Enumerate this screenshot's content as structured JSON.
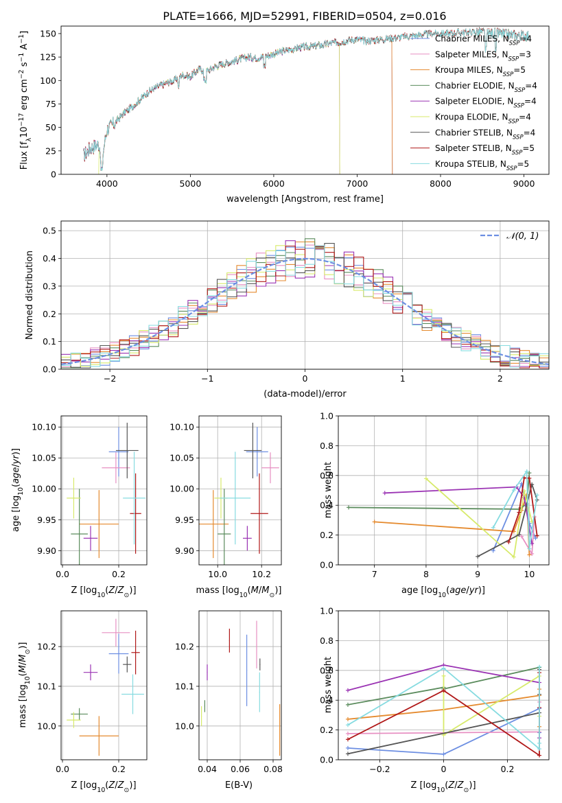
{
  "title": "PLATE=1666, MJD=52991, FIBERID=0504, z=0.016",
  "colors": {
    "Chabrier MILES": "#6c8ee2",
    "Salpeter MILES": "#e78fc2",
    "Kroupa MILES": "#e58a2e",
    "Chabrier ELODIE": "#5a8b5c",
    "Salpeter ELODIE": "#9a32b3",
    "Kroupa ELODIE": "#d7ea6a",
    "Chabrier STELIB": "#555555",
    "Salpeter STELIB": "#b01818",
    "Kroupa STELIB": "#86dbe0"
  },
  "chart_data": [
    {
      "id": "spectrum",
      "type": "line",
      "xlabel": "wavelength [Angstrom, rest frame]",
      "ylabel_pre": "Flux [f",
      "ylabel_sub": "λ",
      "ylabel_mid": "10",
      "ylabel_sup": "−17",
      "ylabel_post": " erg cm",
      "ylabel_sup2": "−2",
      "ylabel_post2": " s",
      "ylabel_sup3": "−1",
      "ylabel_post3": " A",
      "ylabel_sup4": "−1",
      "ylabel_end": "]",
      "xlim": [
        3450,
        9300
      ],
      "ylim": [
        0,
        158
      ],
      "xticks": [
        4000,
        5000,
        6000,
        7000,
        8000,
        9000
      ],
      "yticks": [
        0,
        25,
        50,
        75,
        100,
        125,
        150
      ],
      "legend_position": "upper right",
      "legend": [
        {
          "label": "Chabrier MILES, N",
          "sub": "SSP",
          "tail": "=4",
          "series": "Chabrier MILES"
        },
        {
          "label": "Salpeter MILES, N",
          "sub": "SSP",
          "tail": "=3",
          "series": "Salpeter MILES"
        },
        {
          "label": "Kroupa MILES, N",
          "sub": "SSP",
          "tail": "=5",
          "series": "Kroupa MILES"
        },
        {
          "label": "Chabrier ELODIE, N",
          "sub": "SSP",
          "tail": "=4",
          "series": "Chabrier ELODIE"
        },
        {
          "label": "Salpeter ELODIE, N",
          "sub": "SSP",
          "tail": "=4",
          "series": "Salpeter ELODIE"
        },
        {
          "label": "Kroupa ELODIE, N",
          "sub": "SSP",
          "tail": "=4",
          "series": "Kroupa ELODIE"
        },
        {
          "label": "Chabrier STELIB, N",
          "sub": "SSP",
          "tail": "=4",
          "series": "Chabrier STELIB"
        },
        {
          "label": "Salpeter STELIB, N",
          "sub": "SSP",
          "tail": "=5",
          "series": "Salpeter STELIB"
        },
        {
          "label": "Kroupa STELIB, N",
          "sub": "SSP",
          "tail": "=5",
          "series": "Kroupa STELIB"
        }
      ],
      "continuum": [
        [
          3720,
          20
        ],
        [
          3800,
          28
        ],
        [
          3900,
          32
        ],
        [
          3950,
          22
        ],
        [
          4000,
          48
        ],
        [
          4100,
          55
        ],
        [
          4200,
          65
        ],
        [
          4300,
          72
        ],
        [
          4400,
          80
        ],
        [
          4500,
          88
        ],
        [
          4600,
          93
        ],
        [
          4700,
          97
        ],
        [
          4800,
          100
        ],
        [
          4900,
          106
        ],
        [
          5000,
          104
        ],
        [
          5100,
          112
        ],
        [
          5200,
          110
        ],
        [
          5300,
          115
        ],
        [
          5400,
          118
        ],
        [
          5500,
          120
        ],
        [
          5600,
          123
        ],
        [
          5700,
          125
        ],
        [
          5800,
          124
        ],
        [
          5900,
          126
        ],
        [
          6000,
          128
        ],
        [
          6100,
          131
        ],
        [
          6200,
          133
        ],
        [
          6300,
          135
        ],
        [
          6400,
          136
        ],
        [
          6500,
          137
        ],
        [
          6600,
          138
        ],
        [
          6700,
          140
        ],
        [
          6800,
          141
        ],
        [
          6900,
          143
        ],
        [
          7000,
          144
        ],
        [
          7100,
          142
        ],
        [
          7200,
          143
        ],
        [
          7300,
          144
        ],
        [
          7400,
          145
        ],
        [
          7500,
          146
        ],
        [
          7600,
          147
        ],
        [
          7700,
          148
        ],
        [
          7800,
          149
        ],
        [
          7900,
          150
        ],
        [
          8000,
          150
        ],
        [
          8100,
          150
        ],
        [
          8200,
          151
        ],
        [
          8300,
          151
        ],
        [
          8400,
          152
        ],
        [
          8500,
          151
        ],
        [
          8600,
          150
        ],
        [
          8700,
          150
        ],
        [
          8800,
          149
        ],
        [
          8900,
          148
        ],
        [
          9000,
          148
        ],
        [
          9060,
          148
        ]
      ],
      "dropouts": [
        {
          "series": "Kroupa ELODIE",
          "start": 3720,
          "end": 3900
        },
        {
          "series": "Kroupa ELODIE",
          "start": 6790,
          "end": 9060
        },
        {
          "series": "Kroupa MILES",
          "start": 7420,
          "end": 9060
        },
        {
          "series": "Salpeter MILES",
          "start": 7420,
          "end": 9060
        },
        {
          "series": "Chabrier MILES",
          "start": 7420,
          "end": 9060
        },
        {
          "series": "Salpeter ELODIE",
          "start": 6790,
          "end": 9060
        }
      ]
    },
    {
      "id": "residuals",
      "type": "histogram",
      "xlabel": "(data-model)/error",
      "ylabel": "Normed distribution",
      "xlim": [
        -2.5,
        2.5
      ],
      "ylim": [
        0,
        0.535
      ],
      "xticks": [
        -2,
        -1,
        0,
        1,
        2
      ],
      "yticks": [
        0.0,
        0.1,
        0.2,
        0.3,
        0.4,
        0.5
      ],
      "grid": true,
      "bin_width": 0.1,
      "reference_curve": {
        "label": "𝒩(0, 1)",
        "color": "#6c8ee2",
        "style": "dashed",
        "mean": 0,
        "sigma": 1
      },
      "legend_position": "upper right"
    },
    {
      "id": "age_vs_Z",
      "type": "errorbar",
      "xlabel": "Z [log₁₀(Z/Z⊙)]",
      "ylabel": "age  [log₁₀(age/yr)]",
      "xlim": [
        -0.005,
        0.3
      ],
      "ylim": [
        9.877,
        10.118
      ],
      "xticks": [
        0.0,
        0.2
      ],
      "yticks": [
        9.9,
        9.95,
        10.0,
        10.05,
        10.1
      ],
      "grid": true,
      "points": [
        {
          "series": "Chabrier MILES",
          "x": 0.2,
          "y": 10.06,
          "xerr": 0.035,
          "yerr": 0.04
        },
        {
          "series": "Salpeter MILES",
          "x": 0.19,
          "y": 10.034,
          "xerr": 0.05,
          "yerr": 0.025
        },
        {
          "series": "Kroupa MILES",
          "x": 0.13,
          "y": 9.943,
          "xerr": 0.07,
          "yerr": 0.055
        },
        {
          "series": "Chabrier ELODIE",
          "x": 0.06,
          "y": 9.927,
          "xerr": 0.03,
          "yerr": 0.073
        },
        {
          "series": "Salpeter ELODIE",
          "x": 0.1,
          "y": 9.92,
          "xerr": 0.025,
          "yerr": 0.02
        },
        {
          "series": "Kroupa ELODIE",
          "x": 0.04,
          "y": 9.985,
          "xerr": 0.025,
          "yerr": 0.033
        },
        {
          "series": "Chabrier STELIB",
          "x": 0.23,
          "y": 10.062,
          "xerr": 0.04,
          "yerr": 0.045
        },
        {
          "series": "Salpeter STELIB",
          "x": 0.26,
          "y": 9.96,
          "xerr": 0.02,
          "yerr": 0.065
        },
        {
          "series": "Kroupa STELIB",
          "x": 0.255,
          "y": 9.985,
          "xerr": 0.04,
          "yerr": 0.075
        }
      ]
    },
    {
      "id": "age_vs_mass",
      "type": "errorbar",
      "xlabel": "mass [log₁₀(M/M⊙)]",
      "ylabel": "",
      "xlim": [
        9.915,
        10.29
      ],
      "ylim": [
        9.877,
        10.118
      ],
      "xticks": [
        10.0,
        10.2
      ],
      "yticks": [
        9.9,
        9.95,
        10.0,
        10.05,
        10.1
      ],
      "grid": true,
      "points": [
        {
          "series": "Chabrier MILES",
          "x": 10.18,
          "y": 10.06,
          "xerr": 0.05,
          "yerr": 0.04
        },
        {
          "series": "Salpeter MILES",
          "x": 10.24,
          "y": 10.034,
          "xerr": 0.04,
          "yerr": 0.025
        },
        {
          "series": "Kroupa MILES",
          "x": 9.98,
          "y": 9.943,
          "xerr": 0.07,
          "yerr": 0.055
        },
        {
          "series": "Chabrier ELODIE",
          "x": 10.03,
          "y": 9.927,
          "xerr": 0.03,
          "yerr": 0.073
        },
        {
          "series": "Salpeter ELODIE",
          "x": 10.135,
          "y": 9.92,
          "xerr": 0.02,
          "yerr": 0.02
        },
        {
          "series": "Kroupa ELODIE",
          "x": 10.015,
          "y": 9.985,
          "xerr": 0.03,
          "yerr": 0.033
        },
        {
          "series": "Chabrier STELIB",
          "x": 10.16,
          "y": 10.062,
          "xerr": 0.04,
          "yerr": 0.045
        },
        {
          "series": "Salpeter STELIB",
          "x": 10.19,
          "y": 9.96,
          "xerr": 0.04,
          "yerr": 0.065
        },
        {
          "series": "Kroupa STELIB",
          "x": 10.08,
          "y": 9.985,
          "xerr": 0.07,
          "yerr": 0.075
        }
      ]
    },
    {
      "id": "weight_vs_age",
      "type": "line",
      "xlabel": "age  [log₁₀(age/yr)]",
      "ylabel": "mass weight",
      "xlim": [
        6.3,
        10.38
      ],
      "ylim": [
        0,
        1.0
      ],
      "xticks": [
        7,
        8,
        9,
        10
      ],
      "yticks": [
        0.0,
        0.2,
        0.4,
        0.6,
        0.8,
        1.0
      ],
      "grid": true
    },
    {
      "id": "mass_vs_Z",
      "type": "errorbar",
      "xlabel": "Z [log₁₀(Z/Z⊙)]",
      "ylabel": "mass [log₁₀(M/M⊙)]",
      "xlim": [
        -0.005,
        0.3
      ],
      "ylim": [
        9.915,
        10.29
      ],
      "xticks": [
        0.0,
        0.2
      ],
      "yticks": [
        10.0,
        10.1,
        10.2
      ],
      "grid": true,
      "points": [
        {
          "series": "Chabrier MILES",
          "x": 0.2,
          "y": 10.182,
          "xerr": 0.035,
          "yerr": 0.05
        },
        {
          "series": "Salpeter MILES",
          "x": 0.19,
          "y": 10.235,
          "xerr": 0.05,
          "yerr": 0.035
        },
        {
          "series": "Kroupa MILES",
          "x": 0.13,
          "y": 9.975,
          "xerr": 0.07,
          "yerr": 0.05
        },
        {
          "series": "Chabrier ELODIE",
          "x": 0.06,
          "y": 10.03,
          "xerr": 0.03,
          "yerr": 0.015
        },
        {
          "series": "Salpeter ELODIE",
          "x": 0.1,
          "y": 10.135,
          "xerr": 0.025,
          "yerr": 0.02
        },
        {
          "series": "Kroupa ELODIE",
          "x": 0.04,
          "y": 10.015,
          "xerr": 0.025,
          "yerr": 0.02
        },
        {
          "series": "Chabrier STELIB",
          "x": 0.23,
          "y": 10.155,
          "xerr": 0.015,
          "yerr": 0.02
        },
        {
          "series": "Salpeter STELIB",
          "x": 0.26,
          "y": 10.185,
          "xerr": 0.015,
          "yerr": 0.055
        },
        {
          "series": "Kroupa STELIB",
          "x": 0.25,
          "y": 10.08,
          "xerr": 0.04,
          "yerr": 0.05
        }
      ]
    },
    {
      "id": "mass_vs_EBV",
      "type": "errorbar",
      "xlabel": "E(B-V)",
      "ylabel": "",
      "xlim": [
        0.035,
        0.085
      ],
      "ylim": [
        9.915,
        10.29
      ],
      "xticks": [
        0.04,
        0.06,
        0.08
      ],
      "yticks": [
        10.0,
        10.1,
        10.2
      ],
      "grid": true,
      "points": [
        {
          "series": "Chabrier MILES",
          "x": 0.064,
          "y": 10.14,
          "xerr": 0,
          "yerr": 0.09
        },
        {
          "series": "Salpeter MILES",
          "x": 0.07,
          "y": 10.205,
          "xerr": 0,
          "yerr": 0.06
        },
        {
          "series": "Kroupa MILES",
          "x": 0.084,
          "y": 9.99,
          "xerr": 0,
          "yerr": 0.065
        },
        {
          "series": "Chabrier ELODIE",
          "x": 0.0385,
          "y": 10.05,
          "xerr": 0,
          "yerr": 0.015
        },
        {
          "series": "Salpeter ELODIE",
          "x": 0.04,
          "y": 10.135,
          "xerr": 0,
          "yerr": 0.02
        },
        {
          "series": "Kroupa ELODIE",
          "x": 0.0365,
          "y": 10.025,
          "xerr": 0,
          "yerr": 0.025
        },
        {
          "series": "Chabrier STELIB",
          "x": 0.072,
          "y": 10.155,
          "xerr": 0,
          "yerr": 0.015
        },
        {
          "series": "Salpeter STELIB",
          "x": 0.0535,
          "y": 10.215,
          "xerr": 0,
          "yerr": 0.03
        },
        {
          "series": "Kroupa STELIB",
          "x": 0.0718,
          "y": 10.085,
          "xerr": 0,
          "yerr": 0.05
        }
      ]
    },
    {
      "id": "weight_vs_Z",
      "type": "line",
      "xlabel": "Z [log₁₀(Z/Z⊙)]",
      "ylabel": "mass weight",
      "xlim": [
        -0.33,
        0.33
      ],
      "ylim": [
        0,
        1.0
      ],
      "xticks": [
        -0.2,
        0.0,
        0.2
      ],
      "yticks": [
        0.0,
        0.2,
        0.4,
        0.6,
        0.8,
        1.0
      ],
      "grid": true
    }
  ]
}
